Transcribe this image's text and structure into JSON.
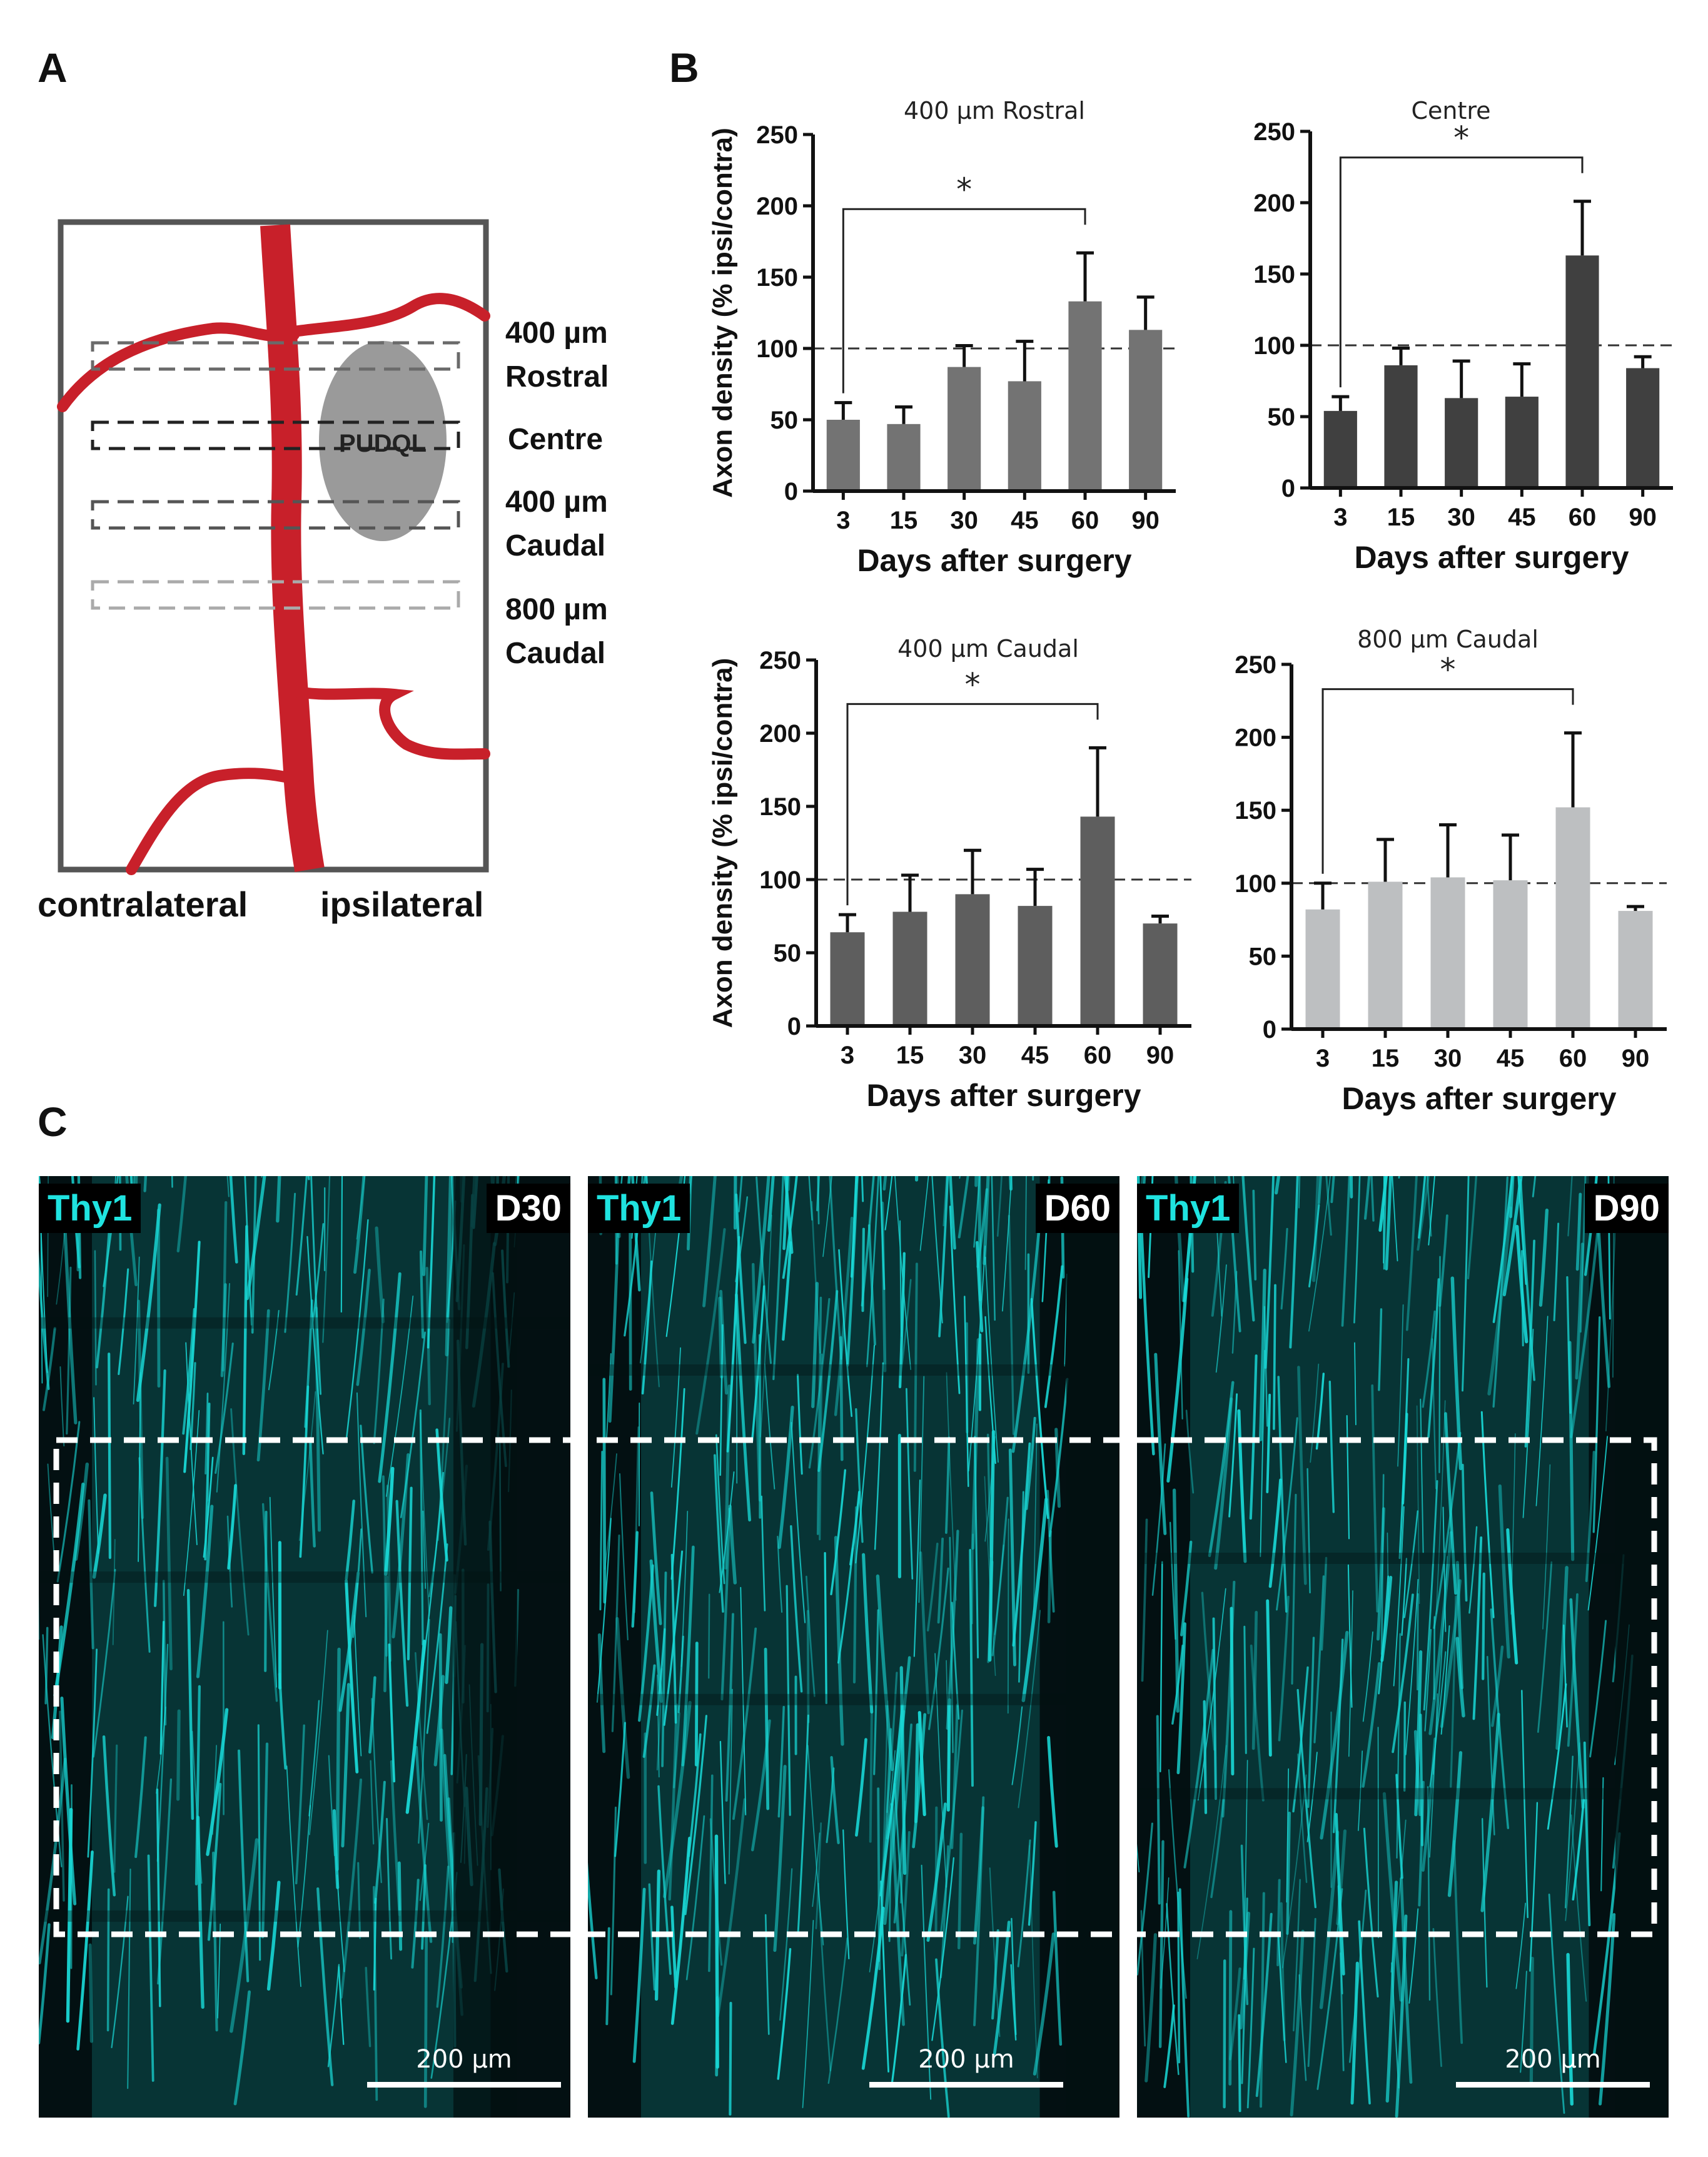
{
  "panels": {
    "a": "A",
    "b": "B",
    "c": "C"
  },
  "diagram": {
    "lesion_label": "PUDQL",
    "levels": [
      {
        "line1": "400 µm",
        "line2": "Rostral"
      },
      {
        "line1": "Centre",
        "line2": ""
      },
      {
        "line1": "400 µm",
        "line2": "Caudal"
      },
      {
        "line1": "800 µm",
        "line2": "Caudal"
      }
    ],
    "side_left": "contralateral",
    "side_right": "ipsilateral",
    "colors": {
      "vessel": "#c8202a",
      "lesion": "#9a9a9a",
      "frame": "#555555"
    }
  },
  "chart_data": [
    {
      "type": "bar",
      "title": "400 µm Rostral",
      "xlabel": "Days after surgery",
      "ylabel": "Axon density (% ipsi/contra)",
      "categories": [
        "3",
        "15",
        "30",
        "45",
        "60",
        "90"
      ],
      "values": [
        50,
        47,
        87,
        77,
        133,
        113
      ],
      "errors": [
        12,
        12,
        15,
        28,
        34,
        23
      ],
      "ylim": [
        0,
        250
      ],
      "yticks": [
        0,
        50,
        100,
        150,
        200,
        250
      ],
      "reference_line": 100,
      "significance": {
        "from": "3",
        "to": "60",
        "label": "*"
      },
      "color": "#737373"
    },
    {
      "type": "bar",
      "title": "Centre",
      "xlabel": "Days after surgery",
      "ylabel": "",
      "categories": [
        "3",
        "15",
        "30",
        "45",
        "60",
        "90"
      ],
      "values": [
        54,
        86,
        63,
        64,
        163,
        84
      ],
      "errors": [
        10,
        12,
        26,
        23,
        38,
        8
      ],
      "ylim": [
        0,
        250
      ],
      "yticks": [
        0,
        50,
        100,
        150,
        200,
        250
      ],
      "reference_line": 100,
      "significance": {
        "from": "3",
        "to": "60",
        "label": "*"
      },
      "color": "#404040"
    },
    {
      "type": "bar",
      "title": "400 µm Caudal",
      "xlabel": "Days after surgery",
      "ylabel": "Axon density (% ipsi/contra)",
      "categories": [
        "3",
        "15",
        "30",
        "45",
        "60",
        "90"
      ],
      "values": [
        64,
        78,
        90,
        82,
        143,
        70
      ],
      "errors": [
        12,
        25,
        30,
        25,
        47,
        5
      ],
      "ylim": [
        0,
        250
      ],
      "yticks": [
        0,
        50,
        100,
        150,
        200,
        250
      ],
      "reference_line": 100,
      "significance": {
        "from": "3",
        "to": "60",
        "label": "*"
      },
      "color": "#5e5e5e"
    },
    {
      "type": "bar",
      "title": "800 µm Caudal",
      "xlabel": "Days after surgery",
      "ylabel": "",
      "categories": [
        "3",
        "15",
        "30",
        "45",
        "60",
        "90"
      ],
      "values": [
        82,
        101,
        104,
        102,
        152,
        81
      ],
      "errors": [
        18,
        29,
        36,
        31,
        51,
        3
      ],
      "ylim": [
        0,
        250
      ],
      "yticks": [
        0,
        50,
        100,
        150,
        200,
        250
      ],
      "reference_line": 100,
      "significance": {
        "from": "3",
        "to": "60",
        "label": "*"
      },
      "color": "#bdbfc1"
    }
  ],
  "micrographs": [
    {
      "stain": "Thy1",
      "day": "D30",
      "scale": "200 µm"
    },
    {
      "stain": "Thy1",
      "day": "D60",
      "scale": "200 µm"
    },
    {
      "stain": "Thy1",
      "day": "D90",
      "scale": "200 µm"
    }
  ],
  "micro_colors": {
    "signal": "#19d8d6",
    "background": "#031012"
  }
}
